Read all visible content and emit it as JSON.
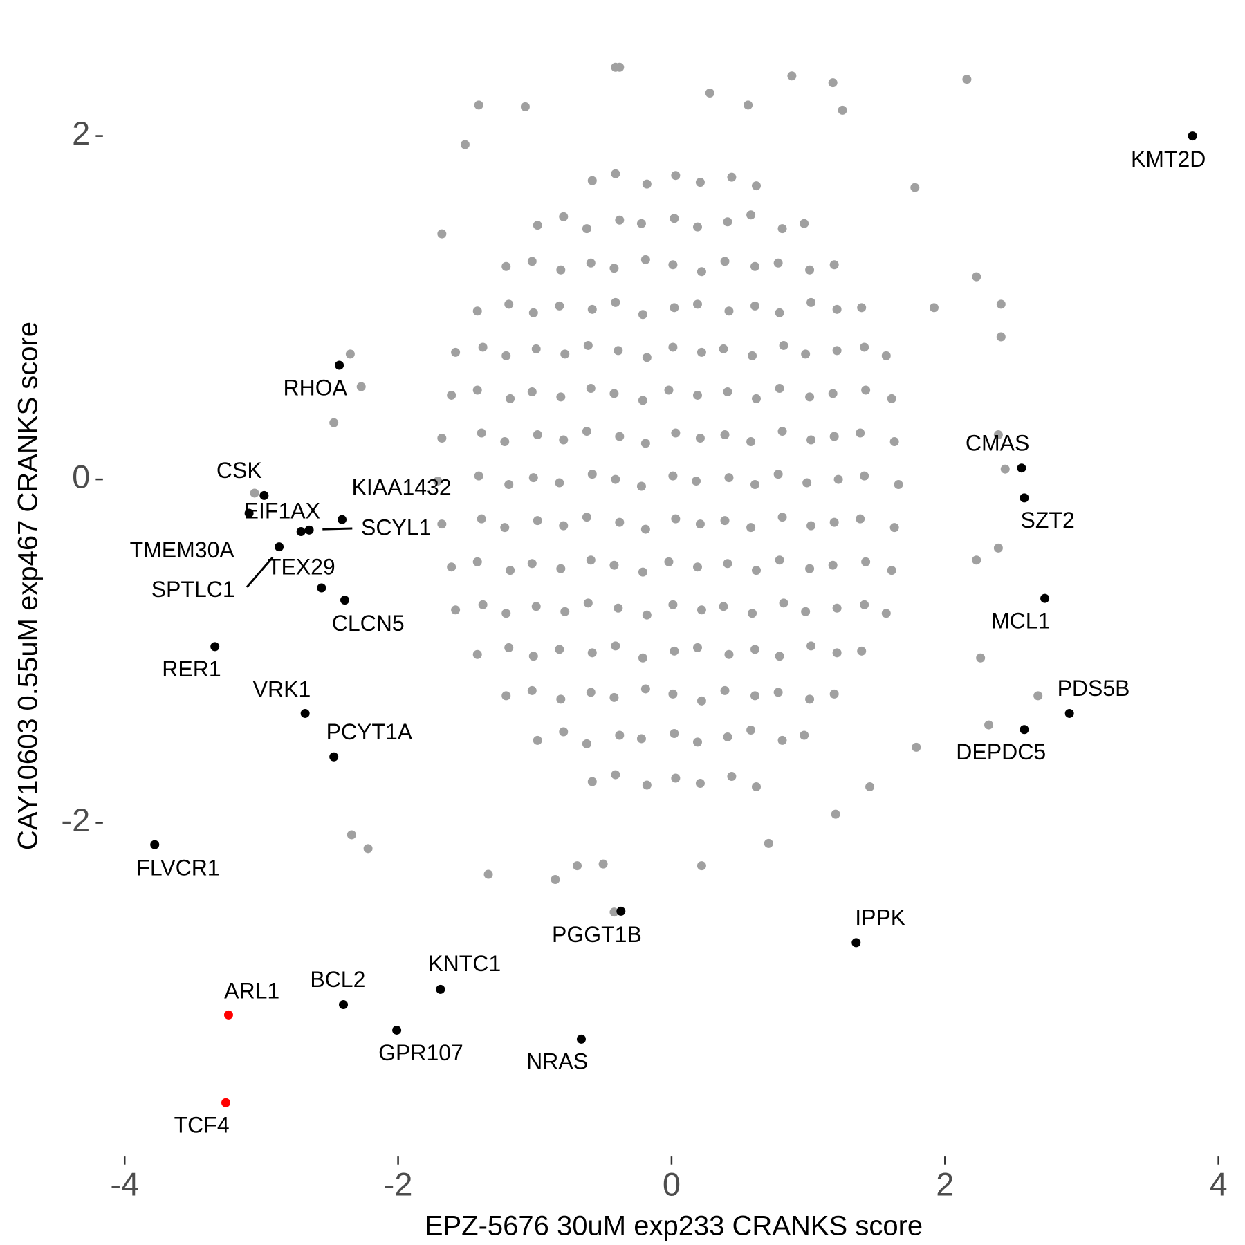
{
  "chart_data": {
    "type": "scatter",
    "x_label": "EPZ-5676 30uM exp233 CRANKS score",
    "y_label": "CAY10603 0.55uM exp467 CRANKS score",
    "xlim": [
      -4.1,
      4.1
    ],
    "ylim": [
      -3.85,
      2.45
    ],
    "xticks": [
      -4,
      -2,
      0,
      2,
      4
    ],
    "yticks": [
      -2,
      0,
      2
    ],
    "series": [
      {
        "color": "#a0a0a0",
        "x": [
          -0.41,
          -0.38,
          0.88,
          2.16,
          1.18,
          -1.41,
          -1.07,
          0.28,
          0.56,
          1.25,
          -1.51,
          1.78,
          -1.68,
          1.92,
          2.41,
          2.41,
          2.23,
          -2.35,
          -2.27,
          -2.47,
          2.39,
          2.44,
          2.39,
          2.23,
          2.26,
          2.68,
          2.32,
          1.79,
          1.45,
          1.2,
          -2.34,
          -2.22,
          -1.34,
          -0.85,
          -0.69,
          -0.5,
          0.22,
          0.71,
          -0.42,
          -3.05,
          -0.58,
          -0.41,
          -0.18,
          0.03,
          0.21,
          0.44,
          0.62,
          -0.98,
          -0.79,
          -0.62,
          -0.38,
          -0.22,
          0.02,
          0.19,
          0.41,
          0.58,
          0.81,
          0.97,
          -1.21,
          -1.02,
          -0.81,
          -0.59,
          -0.42,
          -0.19,
          0.01,
          0.22,
          0.39,
          0.61,
          0.78,
          1.01,
          1.19,
          -1.42,
          -1.19,
          -1.01,
          -0.82,
          -0.58,
          -0.41,
          -0.21,
          0.02,
          0.19,
          0.42,
          0.61,
          0.79,
          1.02,
          1.21,
          1.39,
          -1.58,
          -1.38,
          -1.21,
          -0.99,
          -0.78,
          -0.61,
          -0.39,
          -0.18,
          0.01,
          0.22,
          0.38,
          0.59,
          0.82,
          0.98,
          1.21,
          1.41,
          1.57,
          -1.61,
          -1.42,
          -1.18,
          -1.02,
          -0.81,
          -0.59,
          -0.42,
          -0.21,
          -0.02,
          0.19,
          0.41,
          0.62,
          0.79,
          1.01,
          1.18,
          1.42,
          1.61,
          -1.68,
          -1.39,
          -1.22,
          -0.98,
          -0.79,
          -0.62,
          -0.38,
          -0.19,
          0.03,
          0.21,
          0.39,
          0.58,
          0.81,
          1.02,
          1.19,
          1.38,
          1.63,
          -1.71,
          -1.41,
          -1.19,
          -1.01,
          -0.82,
          -0.58,
          -0.41,
          -0.22,
          0.01,
          0.18,
          0.42,
          0.61,
          0.78,
          0.99,
          1.22,
          1.41,
          1.66,
          -1.68,
          -1.39,
          -1.22,
          -0.98,
          -0.79,
          -0.62,
          -0.38,
          -0.19,
          0.03,
          0.21,
          0.39,
          0.58,
          0.81,
          1.02,
          1.19,
          1.38,
          1.63,
          -1.61,
          -1.42,
          -1.18,
          -1.02,
          -0.81,
          -0.59,
          -0.42,
          -0.21,
          -0.02,
          0.19,
          0.41,
          0.62,
          0.79,
          1.01,
          1.18,
          1.42,
          1.61,
          -1.58,
          -1.38,
          -1.21,
          -0.99,
          -0.78,
          -0.61,
          -0.39,
          -0.18,
          0.01,
          0.22,
          0.38,
          0.59,
          0.82,
          0.98,
          1.21,
          1.41,
          1.57,
          -1.42,
          -1.19,
          -1.01,
          -0.82,
          -0.58,
          -0.41,
          -0.21,
          0.02,
          0.19,
          0.42,
          0.61,
          0.79,
          1.02,
          1.21,
          1.39,
          -1.21,
          -1.02,
          -0.81,
          -0.59,
          -0.42,
          -0.19,
          0.01,
          0.22,
          0.39,
          0.61,
          0.78,
          1.01,
          1.19,
          -0.98,
          -0.79,
          -0.62,
          -0.38,
          -0.22,
          0.02,
          0.19,
          0.41,
          0.58,
          0.81,
          0.97,
          -0.58,
          -0.41,
          -0.18,
          0.03,
          0.21,
          0.44,
          0.62
        ],
        "y": [
          2.4,
          2.4,
          2.35,
          2.33,
          2.31,
          2.18,
          2.17,
          2.25,
          2.18,
          2.15,
          1.95,
          1.7,
          1.43,
          1.0,
          1.02,
          0.83,
          1.18,
          0.73,
          0.54,
          0.33,
          0.26,
          0.06,
          -0.4,
          -0.47,
          -1.04,
          -1.26,
          -1.43,
          -1.56,
          -1.79,
          -1.95,
          -2.07,
          -2.15,
          -2.3,
          -2.33,
          -2.25,
          -2.24,
          -2.25,
          -2.12,
          -2.52,
          -0.08,
          1.74,
          1.78,
          1.72,
          1.77,
          1.73,
          1.76,
          1.71,
          1.48,
          1.53,
          1.46,
          1.51,
          1.49,
          1.52,
          1.47,
          1.5,
          1.54,
          1.46,
          1.49,
          1.24,
          1.27,
          1.22,
          1.26,
          1.23,
          1.28,
          1.25,
          1.21,
          1.27,
          1.24,
          1.26,
          1.22,
          1.25,
          0.98,
          1.02,
          0.97,
          1.01,
          0.99,
          1.03,
          0.96,
          1.0,
          1.02,
          0.98,
          1.01,
          0.97,
          1.03,
          0.99,
          1.0,
          0.74,
          0.77,
          0.72,
          0.76,
          0.73,
          0.78,
          0.75,
          0.71,
          0.77,
          0.74,
          0.76,
          0.72,
          0.78,
          0.73,
          0.75,
          0.77,
          0.72,
          0.49,
          0.52,
          0.47,
          0.51,
          0.48,
          0.53,
          0.5,
          0.46,
          0.52,
          0.49,
          0.51,
          0.47,
          0.53,
          0.48,
          0.5,
          0.52,
          0.47,
          0.24,
          0.27,
          0.22,
          0.26,
          0.23,
          0.28,
          0.25,
          0.21,
          0.27,
          0.24,
          0.26,
          0.22,
          0.28,
          0.23,
          0.25,
          0.27,
          0.22,
          -0.01,
          0.02,
          -0.03,
          0.01,
          -0.02,
          0.03,
          0,
          -0.04,
          0.02,
          -0.01,
          0.01,
          -0.03,
          0.03,
          -0.02,
          0,
          0.02,
          -0.03,
          -0.26,
          -0.23,
          -0.28,
          -0.24,
          -0.27,
          -0.22,
          -0.25,
          -0.29,
          -0.23,
          -0.26,
          -0.24,
          -0.28,
          -0.22,
          -0.27,
          -0.25,
          -0.23,
          -0.28,
          -0.51,
          -0.48,
          -0.53,
          -0.49,
          -0.52,
          -0.47,
          -0.5,
          -0.54,
          -0.48,
          -0.51,
          -0.49,
          -0.53,
          -0.47,
          -0.52,
          -0.5,
          -0.48,
          -0.53,
          -0.76,
          -0.73,
          -0.78,
          -0.74,
          -0.77,
          -0.72,
          -0.75,
          -0.79,
          -0.73,
          -0.76,
          -0.74,
          -0.78,
          -0.72,
          -0.77,
          -0.75,
          -0.73,
          -0.78,
          -1.02,
          -0.98,
          -1.03,
          -0.99,
          -1.01,
          -0.97,
          -1.04,
          -1.0,
          -0.98,
          -1.02,
          -0.99,
          -1.03,
          -0.97,
          -1.01,
          -1.0,
          -1.26,
          -1.23,
          -1.28,
          -1.24,
          -1.27,
          -1.22,
          -1.25,
          -1.29,
          -1.23,
          -1.26,
          -1.24,
          -1.28,
          -1.25,
          -1.52,
          -1.47,
          -1.54,
          -1.49,
          -1.51,
          -1.48,
          -1.53,
          -1.5,
          -1.46,
          -1.52,
          -1.49,
          -1.76,
          -1.72,
          -1.78,
          -1.74,
          -1.77,
          -1.73,
          -1.79
        ]
      },
      {
        "color": "#000000",
        "labels": [
          "KMT2D",
          "RHOA",
          "CSK",
          "EIF1AX",
          "KIAA1432",
          "SCYL1",
          "TMEM30A",
          "SPTLC1",
          "TEX29",
          "CLCN5",
          "RER1",
          "VRK1",
          "PCYT1A",
          "FLVCR1",
          "CMAS",
          "SZT2",
          "MCL1",
          "PDS5B",
          "DEPDC5",
          "PGGT1B",
          "IPPK",
          "KNTC1",
          "BCL2",
          "GPR107",
          "NRAS"
        ],
        "x": [
          3.81,
          -2.43,
          -2.98,
          -3.09,
          -2.41,
          -2.65,
          -2.71,
          -2.87,
          -2.56,
          -2.39,
          -3.34,
          -2.68,
          -2.47,
          -3.78,
          2.56,
          2.58,
          2.73,
          2.91,
          2.58,
          -0.37,
          1.35,
          -1.69,
          -2.4,
          -2.01,
          -0.66
        ],
        "y": [
          2.0,
          0.665,
          -0.094,
          -0.197,
          -0.234,
          -0.295,
          -0.304,
          -0.393,
          -0.632,
          -0.703,
          -0.974,
          -1.363,
          -1.616,
          -2.127,
          0.066,
          -0.108,
          -0.693,
          -1.363,
          -1.457,
          -2.515,
          -2.698,
          -2.97,
          -3.059,
          -3.208,
          -3.26
        ]
      },
      {
        "color": "#ff0000",
        "labels": [
          "ARL1",
          "TCF4"
        ],
        "x": [
          -3.24,
          -3.26
        ],
        "y": [
          -3.119,
          -3.63
        ]
      }
    ]
  }
}
